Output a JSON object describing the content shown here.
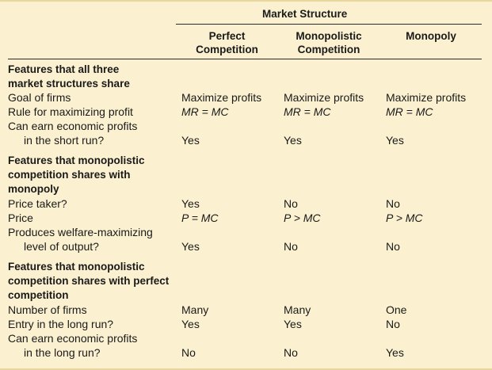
{
  "header": {
    "group_title": "Market Structure",
    "columns": [
      [
        "Perfect",
        "Competition"
      ],
      [
        "Monopolistic",
        "Competition"
      ],
      [
        "Monopoly"
      ]
    ]
  },
  "sections": [
    {
      "heading": [
        "Features that all three",
        "market structures share"
      ],
      "rows": [
        {
          "label": [
            "Goal of firms"
          ],
          "values": [
            "Maximize profits",
            "Maximize profits",
            "Maximize profits"
          ]
        },
        {
          "label": [
            "Rule for maximizing profit"
          ],
          "values": [
            "MR = MC",
            "MR = MC",
            "MR = MC"
          ]
        },
        {
          "label": [
            "Can earn economic profits",
            "in the short run?"
          ],
          "values": [
            "Yes",
            "Yes",
            "Yes"
          ]
        }
      ]
    },
    {
      "heading": [
        "Features that monopolistic",
        "competition shares with",
        "monopoly"
      ],
      "rows": [
        {
          "label": [
            "Price taker?"
          ],
          "values": [
            "Yes",
            "No",
            "No"
          ]
        },
        {
          "label": [
            "Price"
          ],
          "values": [
            "P = MC",
            "P > MC",
            "P > MC"
          ]
        },
        {
          "label": [
            "Produces welfare-maximizing",
            "level of output?"
          ],
          "values": [
            "Yes",
            "No",
            "No"
          ]
        }
      ]
    },
    {
      "heading": [
        "Features that monopolistic",
        "competition shares with perfect",
        "competition"
      ],
      "rows": [
        {
          "label": [
            "Number of firms"
          ],
          "values": [
            "Many",
            "Many",
            "One"
          ]
        },
        {
          "label": [
            "Entry in the long run?"
          ],
          "values": [
            "Yes",
            "Yes",
            "No"
          ]
        },
        {
          "label": [
            "Can earn economic profits",
            "in the long run?"
          ],
          "values": [
            "No",
            "No",
            "Yes"
          ]
        }
      ]
    }
  ]
}
